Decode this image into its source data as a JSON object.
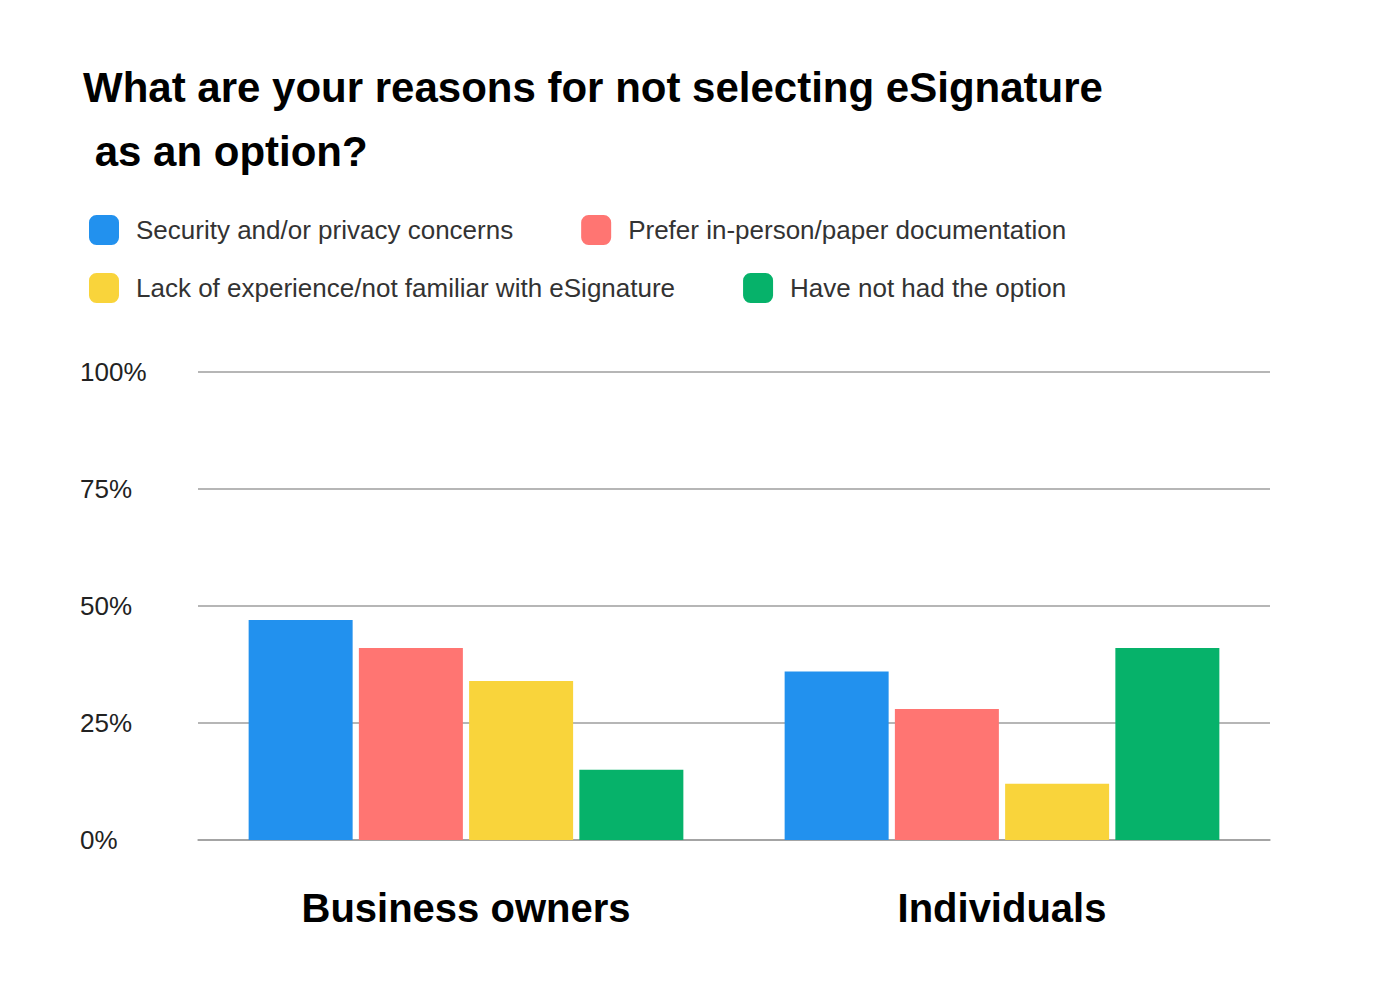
{
  "chart_data": {
    "type": "bar",
    "title": "What are your reasons for not selecting eSignature as an option?",
    "categories": [
      "Business owners",
      "Individuals"
    ],
    "series": [
      {
        "name": "Security and/or privacy concerns",
        "color": "#2291ee",
        "values": [
          47,
          36
        ]
      },
      {
        "name": "Prefer in-person/paper documentation",
        "color": "#ff7572",
        "values": [
          41,
          28
        ]
      },
      {
        "name": "Lack of experience/not familiar with eSignature",
        "color": "#f9d43b",
        "values": [
          34,
          12
        ]
      },
      {
        "name": "Have not had the option",
        "color": "#06b26a",
        "values": [
          15,
          41
        ]
      }
    ],
    "ylim": [
      0,
      100
    ],
    "yticks": [
      {
        "value": 0,
        "label": "0%"
      },
      {
        "value": 25,
        "label": "25%"
      },
      {
        "value": 50,
        "label": "50%"
      },
      {
        "value": 75,
        "label": "75%"
      },
      {
        "value": 100,
        "label": "100%"
      }
    ],
    "grid": true,
    "legend": "top"
  }
}
